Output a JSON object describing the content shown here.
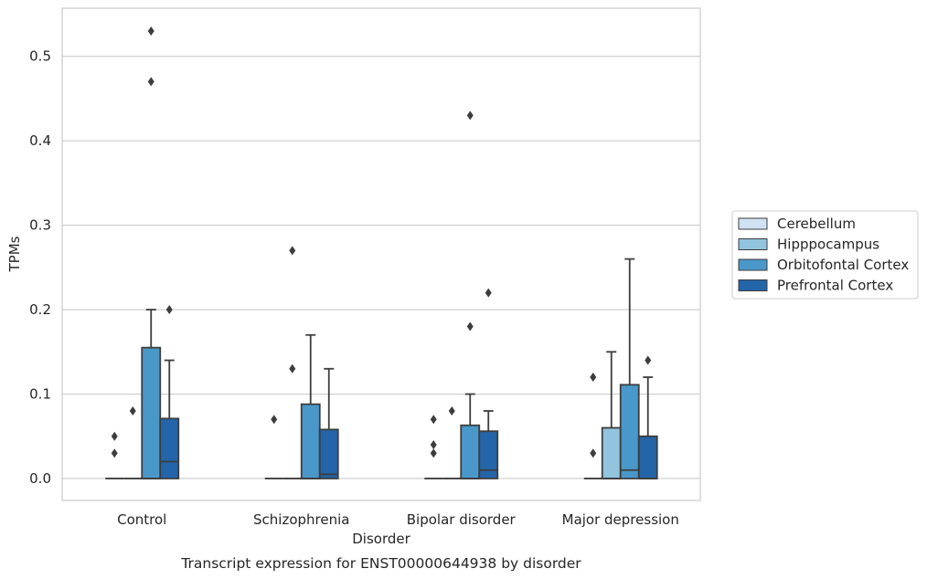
{
  "chart_data": {
    "type": "box",
    "xlabel": "Disorder",
    "ylabel": "TPMs",
    "caption": "Transcript expression for ENST00000644938 by disorder",
    "ylim": [
      -0.026,
      0.557
    ],
    "yticks": [
      0.0,
      0.1,
      0.2,
      0.3,
      0.4,
      0.5
    ],
    "ytick_labels": [
      "0.0",
      "0.1",
      "0.2",
      "0.3",
      "0.4",
      "0.5"
    ],
    "grid": true,
    "legend_position": "right",
    "categories": [
      "Control",
      "Schizophrenia",
      "Bipolar disorder",
      "Major depression"
    ],
    "series": [
      {
        "name": "Cerebellum",
        "color": "#cfe1f2",
        "boxes": [
          {
            "q1": 0,
            "median": 0,
            "q3": 0,
            "whisker_low": 0,
            "whisker_high": 0,
            "outliers": [
              0.03,
              0.05
            ]
          },
          {
            "q1": 0,
            "median": 0,
            "q3": 0,
            "whisker_low": 0,
            "whisker_high": 0,
            "outliers": [
              0.07
            ]
          },
          {
            "q1": 0,
            "median": 0,
            "q3": 0,
            "whisker_low": 0,
            "whisker_high": 0,
            "outliers": [
              0.03,
              0.04,
              0.07
            ]
          },
          {
            "q1": 0,
            "median": 0,
            "q3": 0,
            "whisker_low": 0,
            "whisker_high": 0,
            "outliers": [
              0.03,
              0.12
            ]
          }
        ]
      },
      {
        "name": "Hipppocampus",
        "color": "#93c4de",
        "boxes": [
          {
            "q1": 0,
            "median": 0,
            "q3": 0,
            "whisker_low": 0,
            "whisker_high": 0,
            "outliers": [
              0.08
            ]
          },
          {
            "q1": 0,
            "median": 0,
            "q3": 0,
            "whisker_low": 0,
            "whisker_high": 0,
            "outliers": [
              0.13,
              0.27
            ]
          },
          {
            "q1": 0,
            "median": 0,
            "q3": 0,
            "whisker_low": 0,
            "whisker_high": 0,
            "outliers": [
              0.08
            ]
          },
          {
            "q1": 0,
            "median": 0,
            "q3": 0.06,
            "whisker_low": 0,
            "whisker_high": 0.15,
            "outliers": []
          }
        ]
      },
      {
        "name": "Orbitofontal Cortex",
        "color": "#4a98c9",
        "boxes": [
          {
            "q1": 0,
            "median": 0,
            "q3": 0.155,
            "whisker_low": 0,
            "whisker_high": 0.2,
            "outliers": [
              0.47,
              0.53
            ]
          },
          {
            "q1": 0,
            "median": 0,
            "q3": 0.088,
            "whisker_low": 0,
            "whisker_high": 0.17,
            "outliers": []
          },
          {
            "q1": 0,
            "median": 0,
            "q3": 0.063,
            "whisker_low": 0,
            "whisker_high": 0.1,
            "outliers": [
              0.18,
              0.43
            ]
          },
          {
            "q1": 0,
            "median": 0.01,
            "q3": 0.111,
            "whisker_low": 0,
            "whisker_high": 0.26,
            "outliers": []
          }
        ]
      },
      {
        "name": "Prefrontal Cortex",
        "color": "#2464a8",
        "boxes": [
          {
            "q1": 0,
            "median": 0.02,
            "q3": 0.071,
            "whisker_low": 0,
            "whisker_high": 0.14,
            "outliers": [
              0.2
            ]
          },
          {
            "q1": 0,
            "median": 0.005,
            "q3": 0.058,
            "whisker_low": 0,
            "whisker_high": 0.13,
            "outliers": []
          },
          {
            "q1": 0,
            "median": 0.01,
            "q3": 0.056,
            "whisker_low": 0,
            "whisker_high": 0.08,
            "outliers": [
              0.22
            ]
          },
          {
            "q1": 0,
            "median": 0,
            "q3": 0.05,
            "whisker_low": 0,
            "whisker_high": 0.12,
            "outliers": [
              0.14
            ]
          }
        ]
      }
    ]
  }
}
